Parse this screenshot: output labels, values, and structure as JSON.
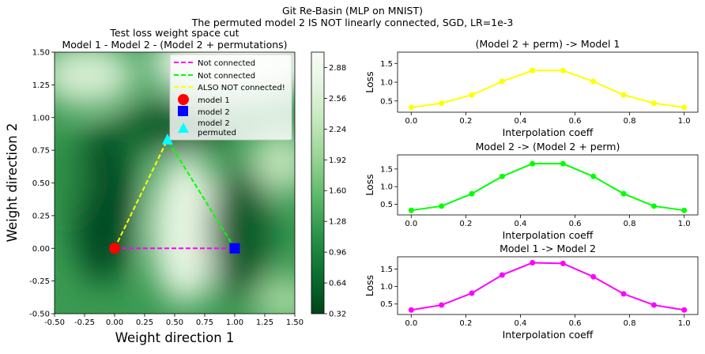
{
  "figure": {
    "suptitle_line1": "Git Re-Basin (MLP on MNIST)",
    "suptitle_line2": "The permuted model 2 IS NOT linearly connected, SGD, LR=1e-3"
  },
  "chart_data": [
    {
      "type": "heatmap",
      "title_line1": "Test loss weight space cut",
      "title_line2": "Model 1 - Model 2 - (Model 2 + permutations)",
      "xlabel": "Weight direction 1",
      "ylabel": "Weight direction 2",
      "xlim": [
        -0.5,
        1.5
      ],
      "ylim": [
        -0.5,
        1.5
      ],
      "xticks": [
        "-0.50",
        "-0.25",
        "0.00",
        "0.25",
        "0.50",
        "0.75",
        "1.00",
        "1.25",
        "1.50"
      ],
      "yticks": [
        "-0.50",
        "-0.25",
        "0.00",
        "0.25",
        "0.50",
        "0.75",
        "1.00",
        "1.25",
        "1.50"
      ],
      "colorbar_ticks": [
        "0.32",
        "0.64",
        "0.96",
        "1.28",
        "1.60",
        "1.92",
        "2.24",
        "2.56",
        "2.88"
      ],
      "colorbar_range": [
        0.32,
        3.04
      ],
      "points": [
        {
          "name": "model 1",
          "x": 0.0,
          "y": 0.0,
          "color": "#ff0000",
          "marker": "circle"
        },
        {
          "name": "model 2",
          "x": 1.0,
          "y": 0.0,
          "color": "#0000ff",
          "marker": "square"
        },
        {
          "name": "model 2\npermuted",
          "x": 0.44,
          "y": 0.83,
          "color": "#00ffff",
          "marker": "triangle"
        }
      ],
      "lines": [
        {
          "name": "Not connected",
          "from": [
            0.0,
            0.0
          ],
          "to": [
            1.0,
            0.0
          ],
          "color": "#ff00ff"
        },
        {
          "name": "Not connected",
          "from": [
            1.0,
            0.0
          ],
          "to": [
            0.44,
            0.83
          ],
          "color": "#00ff00"
        },
        {
          "name": "ALSO NOT connected!",
          "from": [
            0.0,
            0.0
          ],
          "to": [
            0.44,
            0.83
          ],
          "color": "#ffff00"
        }
      ],
      "legend": [
        {
          "label": "Not connected",
          "kind": "line",
          "color": "#ff00ff"
        },
        {
          "label": "Not connected",
          "kind": "line",
          "color": "#00ff00"
        },
        {
          "label": "ALSO NOT connected!",
          "kind": "line",
          "color": "#ffff00"
        },
        {
          "label": "model 1",
          "kind": "circle",
          "color": "#ff0000"
        },
        {
          "label": "model 2",
          "kind": "square",
          "color": "#0000ff"
        },
        {
          "label": "model 2",
          "label2": "permuted",
          "kind": "triangle",
          "color": "#00ffff"
        }
      ],
      "legend_position": "top-right"
    },
    {
      "type": "line",
      "title": "(Model 2 + perm) -> Model 1",
      "xlabel": "Interpolation coeff",
      "ylabel": "Loss",
      "color": "#ffff00",
      "xlim": [
        -0.05,
        1.05
      ],
      "ylim": [
        0.2,
        1.8
      ],
      "xticks": [
        "0.0",
        "0.2",
        "0.4",
        "0.6",
        "0.8",
        "1.0"
      ],
      "yticks": [
        "0.5",
        "1.0",
        "1.5"
      ],
      "x": [
        0.0,
        0.111,
        0.222,
        0.333,
        0.444,
        0.556,
        0.667,
        0.778,
        0.889,
        1.0
      ],
      "y": [
        0.33,
        0.44,
        0.66,
        1.02,
        1.31,
        1.31,
        1.02,
        0.66,
        0.44,
        0.33
      ]
    },
    {
      "type": "line",
      "title": "Model 2 -> (Model 2 + perm)",
      "xlabel": "Interpolation coeff",
      "ylabel": "Loss",
      "color": "#00ff00",
      "xlim": [
        -0.05,
        1.05
      ],
      "ylim": [
        0.2,
        1.9
      ],
      "xticks": [
        "0.0",
        "0.2",
        "0.4",
        "0.6",
        "0.8",
        "1.0"
      ],
      "yticks": [
        "0.5",
        "1.0",
        "1.5"
      ],
      "x": [
        0.0,
        0.111,
        0.222,
        0.333,
        0.444,
        0.556,
        0.667,
        0.778,
        0.889,
        1.0
      ],
      "y": [
        0.33,
        0.45,
        0.8,
        1.29,
        1.65,
        1.65,
        1.29,
        0.8,
        0.45,
        0.33
      ]
    },
    {
      "type": "line",
      "title": "Model 1 -> Model 2",
      "xlabel": "Interpolation coeff",
      "ylabel": "Loss",
      "color": "#ff00ff",
      "xlim": [
        -0.05,
        1.05
      ],
      "ylim": [
        0.2,
        1.85
      ],
      "xticks": [
        "0.0",
        "0.2",
        "0.4",
        "0.6",
        "0.8",
        "1.0"
      ],
      "yticks": [
        "0.5",
        "1.0",
        "1.5"
      ],
      "x": [
        0.0,
        0.111,
        0.222,
        0.333,
        0.444,
        0.556,
        0.667,
        0.778,
        0.889,
        1.0
      ],
      "y": [
        0.33,
        0.47,
        0.81,
        1.33,
        1.68,
        1.66,
        1.28,
        0.79,
        0.47,
        0.33
      ]
    }
  ]
}
